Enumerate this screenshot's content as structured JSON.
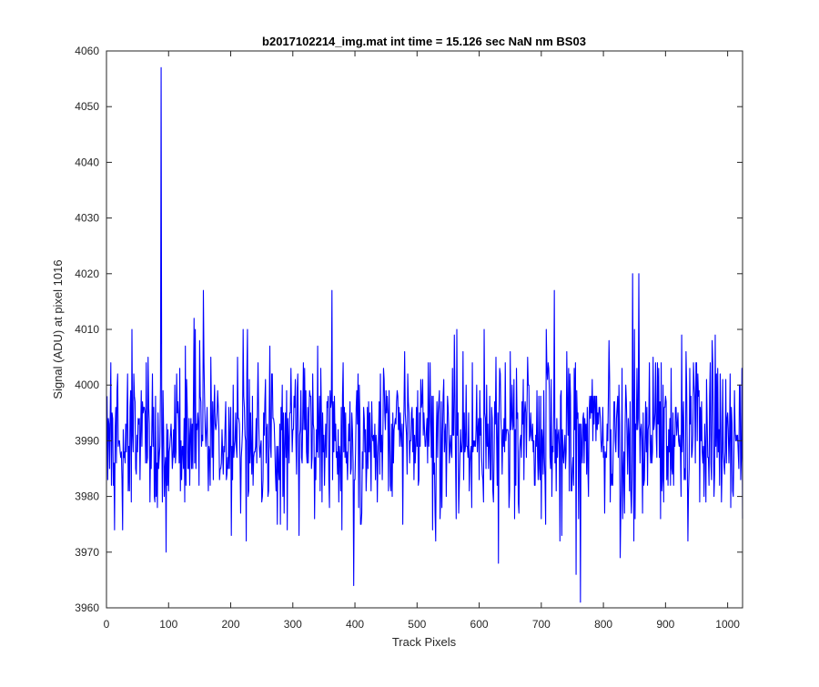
{
  "chart_data": {
    "type": "line",
    "title": "b2017102214_img.mat int time = 15.126 sec  NaN nm BS03",
    "xlabel": "Track Pixels",
    "ylabel": "Signal (ADU) at pixel 1016",
    "xlim": [
      0,
      1024
    ],
    "ylim": [
      3960,
      4060
    ],
    "xticks": [
      0,
      100,
      200,
      300,
      400,
      500,
      600,
      700,
      800,
      900,
      1000
    ],
    "yticks": [
      3960,
      3970,
      3980,
      3990,
      4000,
      4010,
      4020,
      4030,
      4040,
      4050,
      4060
    ],
    "grid": false,
    "legend": "none",
    "series": [
      {
        "color": "#0000ff",
        "baseline": 3991,
        "noise_sd": 7.5,
        "length": 1024,
        "extremes": [
          {
            "x": 87,
            "y": 4057
          },
          {
            "x": 95,
            "y": 3970
          },
          {
            "x": 155,
            "y": 4017
          },
          {
            "x": 140,
            "y": 4012
          },
          {
            "x": 362,
            "y": 4017
          },
          {
            "x": 397,
            "y": 3964
          },
          {
            "x": 630,
            "y": 3968
          },
          {
            "x": 755,
            "y": 3966
          },
          {
            "x": 762,
            "y": 3961
          },
          {
            "x": 826,
            "y": 3969
          },
          {
            "x": 846,
            "y": 4020
          },
          {
            "x": 856,
            "y": 4020
          },
          {
            "x": 720,
            "y": 4017
          }
        ]
      }
    ]
  }
}
